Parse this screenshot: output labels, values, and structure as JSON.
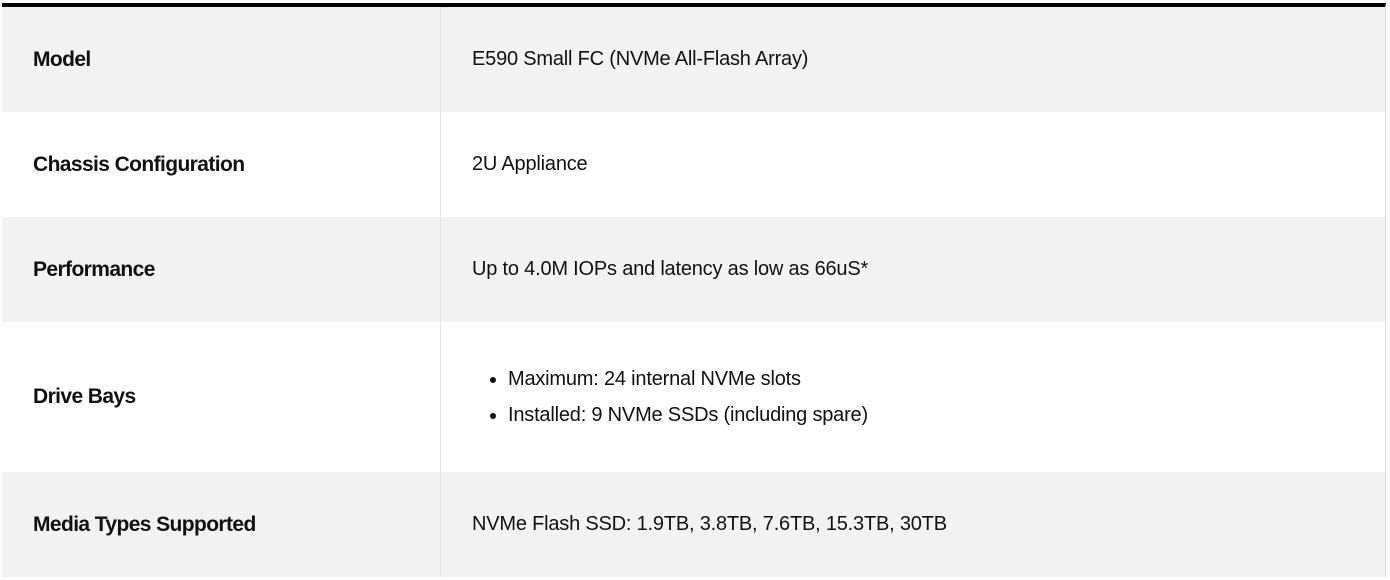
{
  "rows": [
    {
      "label": "Model",
      "value": "E590 Small FC (NVMe All-Flash Array)"
    },
    {
      "label": "Chassis Configuration",
      "value": "2U Appliance"
    },
    {
      "label": "Performance",
      "value": "Up to 4.0M IOPs and latency as low as 66uS*"
    },
    {
      "label": "Drive Bays",
      "items": [
        "Maximum: 24 internal NVMe slots",
        "Installed: 9 NVMe SSDs (including spare)"
      ]
    },
    {
      "label": "Media Types Supported",
      "value": "NVMe Flash SSD: 1.9TB, 3.8TB, 7.6TB, 15.3TB, 30TB"
    }
  ]
}
